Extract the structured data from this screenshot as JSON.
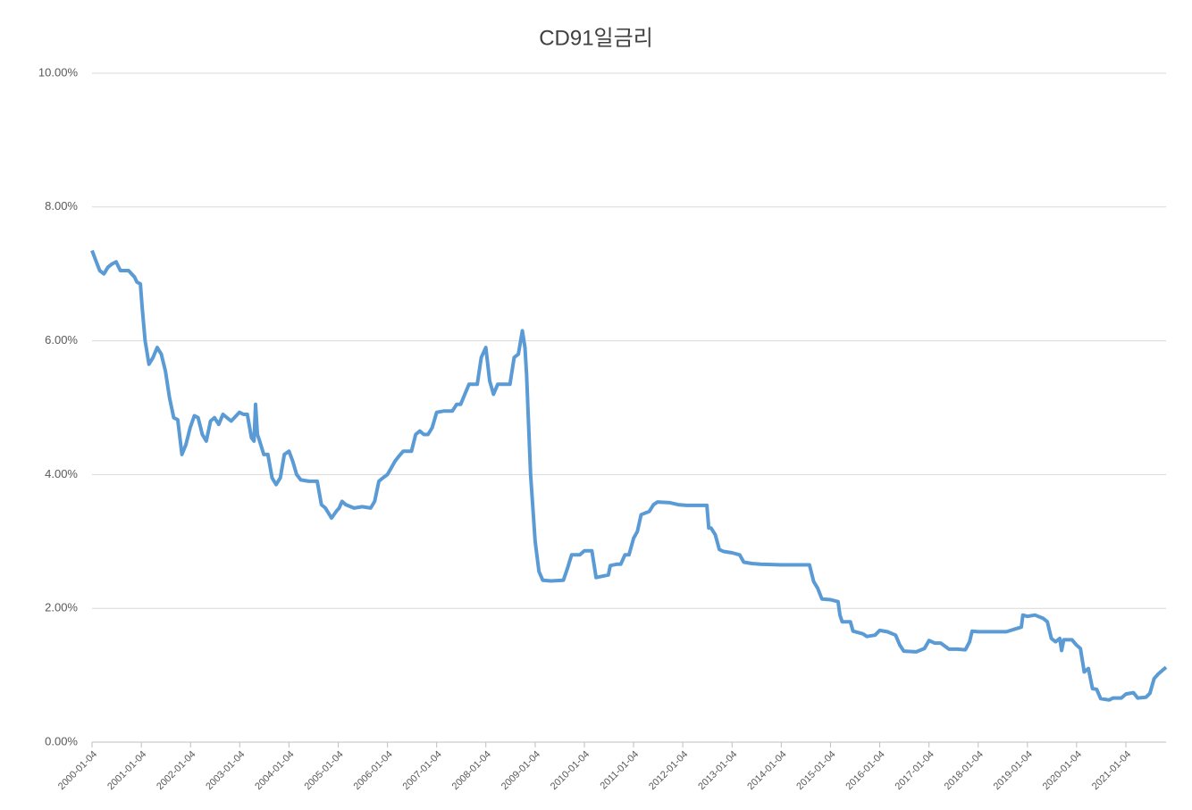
{
  "chart_data": {
    "type": "line",
    "title": "CD91일금리",
    "x": [
      "2000-01-04",
      "2000-02-01",
      "2000-03-01",
      "2000-04-01",
      "2000-05-01",
      "2000-06-01",
      "2000-07-01",
      "2000-08-01",
      "2000-10-01",
      "2000-11-15",
      "2000-12-01",
      "2000-12-28",
      "2001-01-10",
      "2001-02-01",
      "2001-03-01",
      "2001-04-01",
      "2001-05-01",
      "2001-06-01",
      "2001-07-01",
      "2001-08-01",
      "2001-09-01",
      "2001-10-01",
      "2001-11-01",
      "2001-12-01",
      "2002-01-01",
      "2002-02-01",
      "2002-03-01",
      "2002-04-01",
      "2002-05-01",
      "2002-06-01",
      "2002-07-01",
      "2002-08-01",
      "2002-09-01",
      "2002-11-01",
      "2003-01-01",
      "2003-02-01",
      "2003-03-01",
      "2003-04-01",
      "2003-04-20",
      "2003-05-01",
      "2003-05-15",
      "2003-06-01",
      "2003-07-01",
      "2003-08-01",
      "2003-09-01",
      "2003-10-01",
      "2003-11-01",
      "2003-12-01",
      "2004-01-04",
      "2004-02-01",
      "2004-03-01",
      "2004-04-01",
      "2004-06-01",
      "2004-08-01",
      "2004-09-01",
      "2004-10-01",
      "2004-11-15",
      "2004-12-20",
      "2005-01-10",
      "2005-02-01",
      "2005-03-01",
      "2005-05-01",
      "2005-07-01",
      "2005-09-01",
      "2005-10-01",
      "2005-11-01",
      "2005-12-01",
      "2006-01-04",
      "2006-02-01",
      "2006-03-01",
      "2006-04-01",
      "2006-05-01",
      "2006-07-01",
      "2006-08-01",
      "2006-09-01",
      "2006-10-01",
      "2006-11-01",
      "2006-12-01",
      "2007-01-04",
      "2007-03-01",
      "2007-05-01",
      "2007-06-01",
      "2007-07-01",
      "2007-08-01",
      "2007-09-01",
      "2007-11-01",
      "2007-12-01",
      "2008-01-04",
      "2008-02-01",
      "2008-03-01",
      "2008-04-01",
      "2008-06-01",
      "2008-07-01",
      "2008-08-01",
      "2008-09-01",
      "2008-10-01",
      "2008-10-20",
      "2008-11-01",
      "2008-12-01",
      "2009-01-04",
      "2009-02-01",
      "2009-03-01",
      "2009-05-01",
      "2009-08-01",
      "2009-09-01",
      "2009-10-01",
      "2009-12-01",
      "2010-01-04",
      "2010-03-01",
      "2010-04-01",
      "2010-07-01",
      "2010-07-15",
      "2010-09-01",
      "2010-10-01",
      "2010-11-01",
      "2010-12-01",
      "2011-01-04",
      "2011-02-01",
      "2011-03-01",
      "2011-05-01",
      "2011-06-01",
      "2011-07-01",
      "2011-10-01",
      "2011-12-01",
      "2012-02-01",
      "2012-07-01",
      "2012-07-15",
      "2012-08-01",
      "2012-09-01",
      "2012-10-01",
      "2012-11-01",
      "2013-01-04",
      "2013-03-01",
      "2013-04-01",
      "2013-06-01",
      "2013-08-01",
      "2014-01-04",
      "2014-08-01",
      "2014-09-01",
      "2014-10-01",
      "2014-11-01",
      "2015-01-04",
      "2015-03-01",
      "2015-03-15",
      "2015-04-01",
      "2015-06-01",
      "2015-06-20",
      "2015-09-01",
      "2015-10-01",
      "2015-12-01",
      "2016-01-04",
      "2016-03-01",
      "2016-05-01",
      "2016-06-01",
      "2016-07-01",
      "2016-10-01",
      "2016-12-01",
      "2017-01-04",
      "2017-02-15",
      "2017-04-01",
      "2017-06-01",
      "2017-08-01",
      "2017-10-01",
      "2017-11-01",
      "2017-11-20",
      "2018-01-04",
      "2018-08-01",
      "2018-11-20",
      "2018-12-01",
      "2019-01-04",
      "2019-03-01",
      "2019-05-01",
      "2019-06-01",
      "2019-07-01",
      "2019-08-01",
      "2019-09-01",
      "2019-09-15",
      "2019-10-01",
      "2019-12-01",
      "2020-01-04",
      "2020-02-01",
      "2020-03-01",
      "2020-04-01",
      "2020-05-01",
      "2020-06-01",
      "2020-07-01",
      "2020-09-01",
      "2020-10-01",
      "2020-12-01",
      "2021-01-04",
      "2021-03-01",
      "2021-04-01",
      "2021-06-01",
      "2021-07-01",
      "2021-08-01",
      "2021-09-01",
      "2021-10-29"
    ],
    "series": [
      {
        "name": "CD91일금리",
        "color": "#5b9bd5",
        "values": [
          7.35,
          7.2,
          7.05,
          7.0,
          7.1,
          7.15,
          7.18,
          7.05,
          7.05,
          6.95,
          6.88,
          6.85,
          6.5,
          6.0,
          5.65,
          5.75,
          5.9,
          5.8,
          5.55,
          5.15,
          4.85,
          4.82,
          4.3,
          4.45,
          4.7,
          4.88,
          4.85,
          4.6,
          4.5,
          4.8,
          4.85,
          4.75,
          4.9,
          4.8,
          4.93,
          4.9,
          4.9,
          4.55,
          4.5,
          5.05,
          4.6,
          4.5,
          4.3,
          4.3,
          3.95,
          3.85,
          3.95,
          4.3,
          4.35,
          4.2,
          4.0,
          3.92,
          3.9,
          3.9,
          3.55,
          3.5,
          3.35,
          3.45,
          3.5,
          3.6,
          3.55,
          3.5,
          3.52,
          3.5,
          3.6,
          3.9,
          3.95,
          4.0,
          4.1,
          4.2,
          4.28,
          4.35,
          4.35,
          4.6,
          4.65,
          4.6,
          4.6,
          4.7,
          4.93,
          4.95,
          4.95,
          5.05,
          5.05,
          5.2,
          5.35,
          5.35,
          5.75,
          5.9,
          5.4,
          5.2,
          5.35,
          5.35,
          5.35,
          5.75,
          5.8,
          6.15,
          5.9,
          5.5,
          4.0,
          3.0,
          2.55,
          2.42,
          2.41,
          2.42,
          2.6,
          2.8,
          2.8,
          2.86,
          2.86,
          2.46,
          2.5,
          2.64,
          2.66,
          2.66,
          2.8,
          2.8,
          3.05,
          3.15,
          3.4,
          3.45,
          3.55,
          3.59,
          3.58,
          3.55,
          3.54,
          3.54,
          3.2,
          3.2,
          3.1,
          2.88,
          2.85,
          2.83,
          2.8,
          2.69,
          2.67,
          2.66,
          2.65,
          2.65,
          2.4,
          2.3,
          2.14,
          2.13,
          2.1,
          1.9,
          1.8,
          1.8,
          1.66,
          1.62,
          1.58,
          1.6,
          1.67,
          1.65,
          1.6,
          1.45,
          1.36,
          1.35,
          1.4,
          1.52,
          1.48,
          1.48,
          1.39,
          1.39,
          1.38,
          1.5,
          1.66,
          1.65,
          1.65,
          1.72,
          1.9,
          1.88,
          1.9,
          1.85,
          1.8,
          1.55,
          1.5,
          1.55,
          1.37,
          1.53,
          1.53,
          1.45,
          1.4,
          1.05,
          1.1,
          0.8,
          0.79,
          0.65,
          0.63,
          0.66,
          0.66,
          0.72,
          0.74,
          0.66,
          0.67,
          0.73,
          0.95,
          1.02,
          1.12
        ]
      }
    ],
    "xlim": [
      "2000-01-04",
      "2021-10-29"
    ],
    "xticks": [
      "2000-01-04",
      "2001-01-04",
      "2002-01-04",
      "2003-01-04",
      "2004-01-04",
      "2005-01-04",
      "2006-01-04",
      "2007-01-04",
      "2008-01-04",
      "2009-01-04",
      "2010-01-04",
      "2011-01-04",
      "2012-01-04",
      "2013-01-04",
      "2014-01-04",
      "2015-01-04",
      "2016-01-04",
      "2017-01-04",
      "2018-01-04",
      "2019-01-04",
      "2020-01-04",
      "2021-01-04"
    ],
    "ylim": [
      0,
      10
    ],
    "yticks": [
      {
        "value": 0,
        "label": "0.00%"
      },
      {
        "value": 2,
        "label": "2.00%"
      },
      {
        "value": 4,
        "label": "4.00%"
      },
      {
        "value": 6,
        "label": "6.00%"
      },
      {
        "value": 8,
        "label": "8.00%"
      },
      {
        "value": 10,
        "label": "10.00%"
      }
    ],
    "grid": true
  }
}
